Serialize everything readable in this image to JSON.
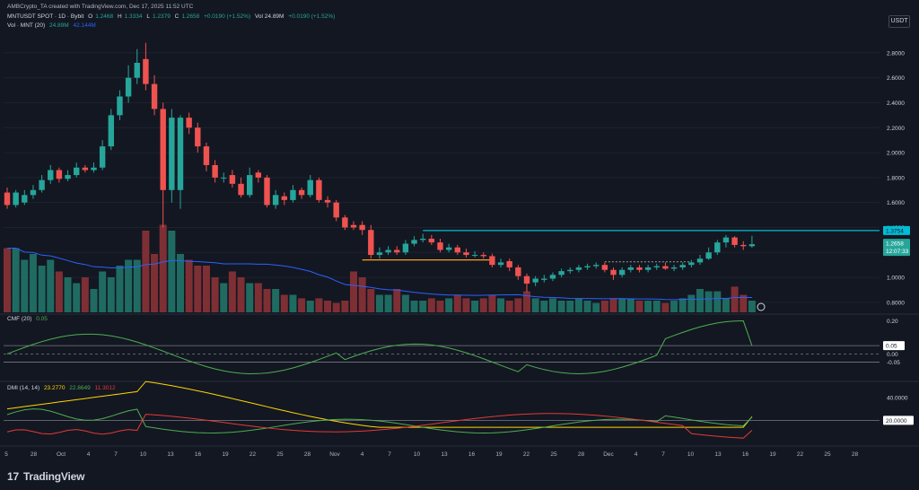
{
  "header": {
    "credit": "AMBCrypto_TA created with TradingView.com, Dec 17, 2025 11:52 UTC",
    "symbol_line": "MNTUSDT SPOT · 1D · Bybit",
    "ohlc": {
      "o_label": "O",
      "o": "1.2468",
      "h_label": "H",
      "h": "1.3334",
      "l_label": "L",
      "l": "1.2379",
      "c_label": "C",
      "c": "1.2658",
      "change": "+0.0190 (+1.52%)"
    },
    "vol_inline": "Vol 24.89M",
    "vol_change": "+0.0190 (+1.52%)",
    "volume_line_label": "Vol · MNT (20)",
    "volume_values": [
      "24.89M",
      "42.144M"
    ]
  },
  "currency_label": "USDT",
  "price_axis": {
    "ticks": [
      "2.8000",
      "2.6000",
      "2.4000",
      "2.2000",
      "2.0000",
      "1.8000",
      "1.6000",
      "1.4000",
      "1.2000",
      "1.0000",
      "0.8000"
    ],
    "tick_values": [
      2.8,
      2.6,
      2.4,
      2.2,
      2.0,
      1.8,
      1.6,
      1.4,
      1.2,
      1.0,
      0.8
    ],
    "resistance_label": "1.3754",
    "last_price_label": "1.2658",
    "countdown_label": "12:07:33"
  },
  "cmf": {
    "label": "CMF (20)",
    "value": "0.05",
    "ticks": [
      "0.20",
      "0.05",
      "0.00",
      "-0.05"
    ],
    "tick_values": [
      0.2,
      0.05,
      0.0,
      -0.05
    ]
  },
  "dmi": {
    "label": "DMI (14, 14)",
    "values": [
      "23.2770",
      "22.8649",
      "11.3012"
    ],
    "ticks": [
      "40.0000",
      "20.0000"
    ],
    "tick_values": [
      40,
      20
    ]
  },
  "time_axis": [
    "5",
    "28",
    "Oct",
    "4",
    "7",
    "10",
    "13",
    "16",
    "19",
    "22",
    "25",
    "28",
    "Nov",
    "4",
    "7",
    "10",
    "13",
    "16",
    "19",
    "22",
    "25",
    "28",
    "Dec",
    "4",
    "7",
    "10",
    "13",
    "16",
    "19",
    "22",
    "25",
    "28"
  ],
  "brand": "TradingView",
  "colors": {
    "bg": "#131722",
    "up": "#26a69a",
    "down": "#ef5350",
    "volume_up": "#1f6b61",
    "volume_down": "#7e2f34",
    "ma": "#2962ff",
    "resistance": "#00bcd4",
    "support": "#f7a21b",
    "cmf_line": "#4caf50",
    "dmi_plus": "#4caf50",
    "dmi_minus": "#e53935",
    "adx": "#ffd600"
  },
  "chart_data": {
    "type": "candlestick",
    "x": [
      "Sep 22",
      "Sep 23",
      "Sep 24",
      "Sep 25",
      "Sep 26",
      "Sep 27",
      "Sep 28",
      "Sep 29",
      "Sep 30",
      "Oct 1",
      "Oct 2",
      "Oct 3",
      "Oct 4",
      "Oct 5",
      "Oct 6",
      "Oct 7",
      "Oct 8",
      "Oct 9",
      "Oct 10",
      "Oct 11",
      "Oct 12",
      "Oct 13",
      "Oct 14",
      "Oct 15",
      "Oct 16",
      "Oct 17",
      "Oct 18",
      "Oct 19",
      "Oct 20",
      "Oct 21",
      "Oct 22",
      "Oct 23",
      "Oct 24",
      "Oct 25",
      "Oct 26",
      "Oct 27",
      "Oct 28",
      "Oct 29",
      "Oct 30",
      "Oct 31",
      "Nov 1",
      "Nov 2",
      "Nov 3",
      "Nov 4",
      "Nov 5",
      "Nov 6",
      "Nov 7",
      "Nov 8",
      "Nov 9",
      "Nov 10",
      "Nov 11",
      "Nov 12",
      "Nov 13",
      "Nov 14",
      "Nov 15",
      "Nov 16",
      "Nov 17",
      "Nov 18",
      "Nov 19",
      "Nov 20",
      "Nov 21",
      "Nov 22",
      "Nov 23",
      "Nov 24",
      "Nov 25",
      "Nov 26",
      "Nov 27",
      "Nov 28",
      "Nov 29",
      "Nov 30",
      "Dec 1",
      "Dec 2",
      "Dec 3",
      "Dec 4",
      "Dec 5",
      "Dec 6",
      "Dec 7",
      "Dec 8",
      "Dec 9",
      "Dec 10",
      "Dec 11",
      "Dec 12",
      "Dec 13",
      "Dec 14",
      "Dec 15",
      "Dec 16",
      "Dec 17"
    ],
    "open": [
      1.68,
      1.58,
      1.6,
      1.66,
      1.7,
      1.78,
      1.86,
      1.79,
      1.82,
      1.88,
      1.86,
      1.88,
      2.05,
      2.3,
      2.45,
      2.6,
      2.75,
      2.55,
      2.35,
      1.7,
      1.7,
      2.28,
      2.2,
      2.05,
      1.9,
      1.8,
      1.82,
      1.75,
      1.66,
      1.84,
      1.8,
      1.58,
      1.65,
      1.62,
      1.7,
      1.66,
      1.78,
      1.62,
      1.6,
      1.48,
      1.42,
      1.42,
      1.38,
      1.18,
      1.2,
      1.22,
      1.2,
      1.27,
      1.3,
      1.31,
      1.28,
      1.22,
      1.24,
      1.2,
      1.18,
      1.18,
      1.17,
      1.1,
      1.13,
      1.08,
      1.01,
      0.96,
      0.98,
      0.99,
      1.02,
      1.05,
      1.06,
      1.08,
      1.09,
      1.1,
      1.06,
      1.02,
      1.06,
      1.08,
      1.06,
      1.08,
      1.09,
      1.07,
      1.08,
      1.1,
      1.12,
      1.15,
      1.2,
      1.28,
      1.32,
      1.26,
      1.25
    ],
    "close": [
      1.58,
      1.68,
      1.66,
      1.7,
      1.78,
      1.86,
      1.79,
      1.82,
      1.88,
      1.86,
      1.88,
      2.05,
      2.3,
      2.45,
      2.6,
      2.72,
      2.55,
      2.35,
      1.7,
      2.28,
      2.28,
      2.2,
      2.05,
      1.9,
      1.8,
      1.8,
      1.75,
      1.66,
      1.82,
      1.8,
      1.58,
      1.66,
      1.62,
      1.7,
      1.66,
      1.78,
      1.62,
      1.6,
      1.48,
      1.4,
      1.4,
      1.38,
      1.18,
      1.2,
      1.22,
      1.2,
      1.27,
      1.3,
      1.31,
      1.28,
      1.22,
      1.24,
      1.2,
      1.18,
      1.18,
      1.17,
      1.1,
      1.12,
      1.08,
      1.01,
      0.95,
      0.99,
      0.99,
      1.02,
      1.05,
      1.06,
      1.08,
      1.09,
      1.1,
      1.06,
      1.02,
      1.06,
      1.08,
      1.06,
      1.08,
      1.09,
      1.07,
      1.08,
      1.1,
      1.12,
      1.15,
      1.2,
      1.28,
      1.32,
      1.26,
      1.25,
      1.2658
    ],
    "high": [
      1.72,
      1.7,
      1.7,
      1.74,
      1.82,
      1.9,
      1.88,
      1.86,
      1.92,
      1.9,
      1.92,
      2.1,
      2.35,
      2.5,
      2.7,
      2.83,
      2.88,
      2.62,
      2.4,
      2.35,
      2.3,
      2.32,
      2.24,
      2.08,
      1.94,
      1.84,
      1.86,
      1.8,
      1.88,
      1.86,
      1.82,
      1.7,
      1.68,
      1.74,
      1.72,
      1.82,
      1.8,
      1.65,
      1.62,
      1.5,
      1.45,
      1.45,
      1.42,
      1.24,
      1.25,
      1.25,
      1.3,
      1.33,
      1.35,
      1.34,
      1.31,
      1.27,
      1.26,
      1.23,
      1.21,
      1.2,
      1.19,
      1.15,
      1.15,
      1.1,
      1.03,
      1.01,
      1.02,
      1.04,
      1.07,
      1.08,
      1.1,
      1.11,
      1.12,
      1.12,
      1.08,
      1.08,
      1.1,
      1.1,
      1.1,
      1.11,
      1.12,
      1.1,
      1.12,
      1.14,
      1.18,
      1.24,
      1.3,
      1.34,
      1.33,
      1.29,
      1.3334
    ],
    "low": [
      1.55,
      1.56,
      1.58,
      1.63,
      1.68,
      1.75,
      1.76,
      1.77,
      1.8,
      1.84,
      1.84,
      1.86,
      2.02,
      2.26,
      2.4,
      2.55,
      2.5,
      2.3,
      1.4,
      1.6,
      1.55,
      2.15,
      2.0,
      1.85,
      1.76,
      1.76,
      1.72,
      1.64,
      1.64,
      1.76,
      1.56,
      1.55,
      1.58,
      1.6,
      1.63,
      1.64,
      1.6,
      1.56,
      1.45,
      1.38,
      1.38,
      1.34,
      1.15,
      1.15,
      1.18,
      1.18,
      1.18,
      1.25,
      1.28,
      1.26,
      1.2,
      1.2,
      1.18,
      1.16,
      1.16,
      1.15,
      1.08,
      1.08,
      1.05,
      0.98,
      0.88,
      0.93,
      0.96,
      0.97,
      1.0,
      1.03,
      1.04,
      1.06,
      1.07,
      1.04,
      0.98,
      1.0,
      1.04,
      1.04,
      1.04,
      1.06,
      1.06,
      1.05,
      1.06,
      1.08,
      1.1,
      1.14,
      1.18,
      1.24,
      1.24,
      1.22,
      1.2379
    ],
    "volume_relative": [
      0.55,
      0.55,
      0.45,
      0.5,
      0.4,
      0.45,
      0.35,
      0.3,
      0.25,
      0.3,
      0.2,
      0.35,
      0.3,
      0.4,
      0.45,
      0.45,
      0.7,
      0.5,
      0.75,
      0.7,
      0.5,
      0.45,
      0.4,
      0.4,
      0.3,
      0.25,
      0.35,
      0.3,
      0.25,
      0.25,
      0.2,
      0.2,
      0.15,
      0.15,
      0.12,
      0.1,
      0.12,
      0.1,
      0.08,
      0.1,
      0.35,
      0.3,
      0.2,
      0.15,
      0.15,
      0.2,
      0.15,
      0.1,
      0.1,
      0.12,
      0.1,
      0.12,
      0.15,
      0.12,
      0.1,
      0.12,
      0.15,
      0.12,
      0.1,
      0.12,
      0.18,
      0.12,
      0.1,
      0.12,
      0.1,
      0.1,
      0.12,
      0.1,
      0.08,
      0.1,
      0.12,
      0.12,
      0.12,
      0.1,
      0.1,
      0.1,
      0.08,
      0.1,
      0.12,
      0.15,
      0.2,
      0.18,
      0.18,
      0.12,
      0.22,
      0.15,
      0.1
    ],
    "resistance": 1.3754,
    "support": 1.14,
    "ylim": [
      0.72,
      2.95
    ]
  }
}
